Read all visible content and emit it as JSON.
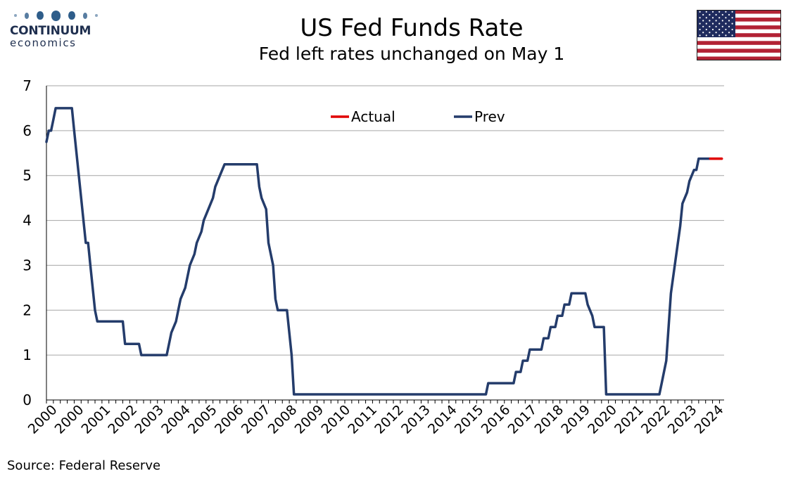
{
  "header": {
    "logo_line1": "CONTINUUM",
    "logo_line2": "economics",
    "title": "US Fed Funds Rate",
    "subtitle": "Fed left rates unchanged on May 1"
  },
  "footer": {
    "source": "Source: Federal Reserve"
  },
  "colors": {
    "prev": "#243c6b",
    "actual": "#e00000",
    "grid": "#a6a6a6",
    "logo": "#2e5d8a"
  },
  "icons": {
    "logo": "continuum-logo-icon",
    "flag": "us-flag-icon"
  },
  "chart_data": {
    "type": "line",
    "title": "US Fed Funds Rate",
    "subtitle": "Fed left rates unchanged on May 1",
    "xlabel": "",
    "ylabel": "",
    "ylim": [
      0,
      7
    ],
    "yticks": [
      0,
      1,
      2,
      3,
      4,
      5,
      6,
      7
    ],
    "xlim": [
      "2000-01",
      "2024-06"
    ],
    "x_tick_labels": [
      "2000",
      "2000",
      "2001",
      "2002",
      "2003",
      "2004",
      "2005",
      "2006",
      "2007",
      "2008",
      "2009",
      "2010",
      "2011",
      "2012",
      "2013",
      "2014",
      "2015",
      "2016",
      "2017",
      "2018",
      "2019",
      "2020",
      "2021",
      "2022",
      "2023",
      "2024"
    ],
    "grid": true,
    "legend_position": "top-center",
    "series": [
      {
        "name": "Actual",
        "color": "#e00000",
        "points": [
          [
            "2023-12",
            5.375
          ],
          [
            "2024-05",
            5.375
          ]
        ]
      },
      {
        "name": "Prev",
        "color": "#243c6b",
        "points": [
          [
            "2000-01",
            5.75
          ],
          [
            "2000-02",
            6.0
          ],
          [
            "2000-03",
            6.0
          ],
          [
            "2000-04",
            6.25
          ],
          [
            "2000-05",
            6.5
          ],
          [
            "2000-12",
            6.5
          ],
          [
            "2001-01",
            6.0
          ],
          [
            "2001-02",
            5.5
          ],
          [
            "2001-03",
            5.0
          ],
          [
            "2001-04",
            4.5
          ],
          [
            "2001-05",
            4.0
          ],
          [
            "2001-06",
            3.5
          ],
          [
            "2001-07",
            3.5
          ],
          [
            "2001-08",
            3.0
          ],
          [
            "2001-09",
            2.5
          ],
          [
            "2001-10",
            2.0
          ],
          [
            "2001-11",
            1.75
          ],
          [
            "2002-10",
            1.75
          ],
          [
            "2002-11",
            1.25
          ],
          [
            "2003-05",
            1.25
          ],
          [
            "2003-06",
            1.0
          ],
          [
            "2004-05",
            1.0
          ],
          [
            "2004-06",
            1.25
          ],
          [
            "2004-07",
            1.5
          ],
          [
            "2004-09",
            1.75
          ],
          [
            "2004-10",
            2.0
          ],
          [
            "2004-11",
            2.25
          ],
          [
            "2005-01",
            2.5
          ],
          [
            "2005-02",
            2.75
          ],
          [
            "2005-03",
            3.0
          ],
          [
            "2005-05",
            3.25
          ],
          [
            "2005-06",
            3.5
          ],
          [
            "2005-08",
            3.75
          ],
          [
            "2005-09",
            4.0
          ],
          [
            "2005-11",
            4.25
          ],
          [
            "2006-01",
            4.5
          ],
          [
            "2006-02",
            4.75
          ],
          [
            "2006-04",
            5.0
          ],
          [
            "2006-06",
            5.25
          ],
          [
            "2007-08",
            5.25
          ],
          [
            "2007-09",
            4.75
          ],
          [
            "2007-10",
            4.5
          ],
          [
            "2007-12",
            4.25
          ],
          [
            "2008-01",
            3.5
          ],
          [
            "2008-03",
            3.0
          ],
          [
            "2008-04",
            2.25
          ],
          [
            "2008-05",
            2.0
          ],
          [
            "2008-09",
            2.0
          ],
          [
            "2008-10",
            1.5
          ],
          [
            "2008-11",
            1.0
          ],
          [
            "2008-12",
            0.125
          ],
          [
            "2015-11",
            0.125
          ],
          [
            "2015-12",
            0.375
          ],
          [
            "2016-11",
            0.375
          ],
          [
            "2016-12",
            0.625
          ],
          [
            "2017-02",
            0.625
          ],
          [
            "2017-03",
            0.875
          ],
          [
            "2017-05",
            0.875
          ],
          [
            "2017-06",
            1.125
          ],
          [
            "2017-11",
            1.125
          ],
          [
            "2017-12",
            1.375
          ],
          [
            "2018-02",
            1.375
          ],
          [
            "2018-03",
            1.625
          ],
          [
            "2018-05",
            1.625
          ],
          [
            "2018-06",
            1.875
          ],
          [
            "2018-08",
            1.875
          ],
          [
            "2018-09",
            2.125
          ],
          [
            "2018-11",
            2.125
          ],
          [
            "2018-12",
            2.375
          ],
          [
            "2019-06",
            2.375
          ],
          [
            "2019-07",
            2.125
          ],
          [
            "2019-09",
            1.875
          ],
          [
            "2019-10",
            1.625
          ],
          [
            "2020-02",
            1.625
          ],
          [
            "2020-03",
            0.125
          ],
          [
            "2022-02",
            0.125
          ],
          [
            "2022-03",
            0.375
          ],
          [
            "2022-05",
            0.875
          ],
          [
            "2022-06",
            1.625
          ],
          [
            "2022-07",
            2.375
          ],
          [
            "2022-09",
            3.125
          ],
          [
            "2022-11",
            3.875
          ],
          [
            "2022-12",
            4.375
          ],
          [
            "2023-02",
            4.625
          ],
          [
            "2023-03",
            4.875
          ],
          [
            "2023-05",
            5.125
          ],
          [
            "2023-06",
            5.125
          ],
          [
            "2023-07",
            5.375
          ],
          [
            "2023-12",
            5.375
          ]
        ]
      }
    ],
    "source": "Source: Federal Reserve"
  }
}
